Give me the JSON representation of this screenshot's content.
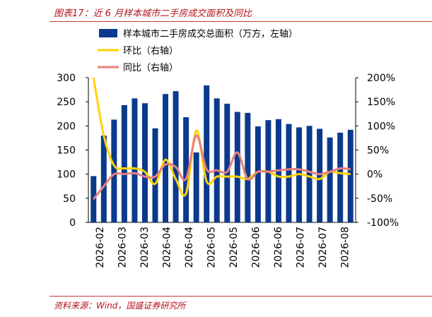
{
  "figure": {
    "title": "图表17：近 6 月样本城市二手房成交面积及同比",
    "source": "资料来源：Wind，国盛证券研究所"
  },
  "colors": {
    "bar": "#0b3a8c",
    "mom": "#ffd200",
    "yoy": "#e87f7c",
    "accent": "#b0141b"
  },
  "chart_data": {
    "type": "bar",
    "title": "",
    "legend_position": "top",
    "x_tick_labels": [
      "2026-02",
      "2026-03",
      "2026-03",
      "2026-04",
      "2026-04",
      "2026-05",
      "2026-05",
      "2026-06",
      "2026-06",
      "2026-07",
      "2026-07",
      "2026-08"
    ],
    "y_left": {
      "min": 0,
      "max": 300,
      "ticks": [
        "0",
        "50",
        "100",
        "150",
        "200",
        "250",
        "300"
      ]
    },
    "y_right": {
      "min": -100,
      "max": 200,
      "ticks": [
        "-100%",
        "-50%",
        "0%",
        "50%",
        "100%",
        "150%",
        "200%"
      ]
    },
    "series": [
      {
        "name": "样本城市二手房成交总面积（万方，左轴）",
        "kind": "bar",
        "axis": "left",
        "values": [
          96,
          180,
          213,
          243,
          257,
          247,
          195,
          266,
          272,
          218,
          145,
          284,
          257,
          246,
          229,
          227,
          199,
          212,
          214,
          204,
          197,
          200,
          194,
          176,
          186,
          192
        ]
      },
      {
        "name": "环比（右轴）",
        "kind": "line",
        "axis": "right",
        "values": [
          200,
          80,
          18,
          12,
          12,
          5,
          -20,
          30,
          -10,
          -40,
          90,
          -15,
          -5,
          -5,
          -5,
          -10,
          5,
          5,
          -5,
          -5,
          0,
          -5,
          -10,
          5,
          2,
          0
        ]
      },
      {
        "name": "同比（右轴）",
        "kind": "line",
        "axis": "right",
        "values": [
          -52,
          -25,
          0,
          0,
          2,
          -5,
          -5,
          20,
          15,
          -10,
          80,
          10,
          8,
          5,
          45,
          -10,
          5,
          5,
          8,
          10,
          10,
          5,
          0,
          5,
          12,
          10
        ]
      }
    ]
  }
}
